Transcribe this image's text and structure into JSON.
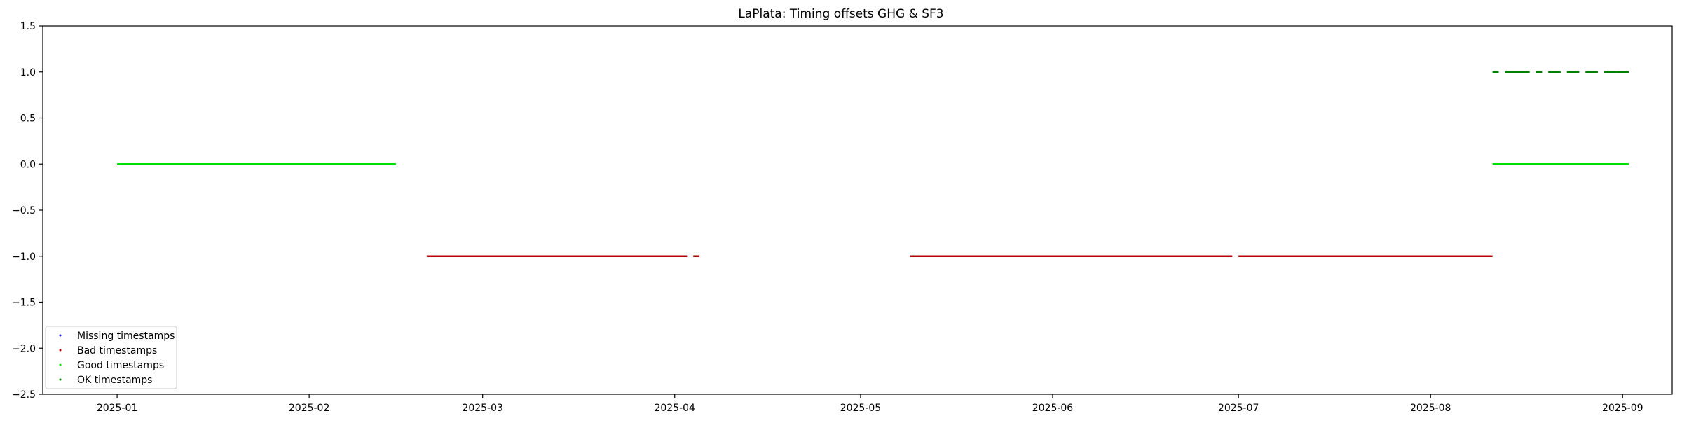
{
  "chart_data": {
    "type": "scatter",
    "title": "LaPlata: Timing offsets GHG & SF3",
    "xlabel": "",
    "ylabel": "",
    "xlim": [
      "2024-12-20",
      "2025-09-09"
    ],
    "ylim": [
      -2.5,
      1.5
    ],
    "x_ticks": [
      "2025-01",
      "2025-02",
      "2025-03",
      "2025-04",
      "2025-05",
      "2025-06",
      "2025-07",
      "2025-08",
      "2025-09"
    ],
    "y_ticks": [
      -2.5,
      -2.0,
      -1.5,
      -1.0,
      -0.5,
      0.0,
      0.5,
      1.0,
      1.5
    ],
    "legend_position": "lower-left",
    "grid": false,
    "series": [
      {
        "name": "Missing timestamps",
        "color": "#1a1aff",
        "segments": []
      },
      {
        "name": "Bad timestamps",
        "color": "#b30000",
        "y": -1.0,
        "segments": [
          [
            "2025-02-20",
            "2025-04-03"
          ],
          [
            "2025-04-04",
            "2025-04-05"
          ],
          [
            "2025-05-09",
            "2025-06-30"
          ],
          [
            "2025-07-01",
            "2025-08-11"
          ]
        ]
      },
      {
        "name": "Good timestamps",
        "color": "#00e000",
        "y": 0.0,
        "segments": [
          [
            "2025-01-01",
            "2025-02-15"
          ],
          [
            "2025-08-11",
            "2025-09-02"
          ]
        ]
      },
      {
        "name": "OK timestamps",
        "color": "#008000",
        "y": 1.0,
        "segments": [
          [
            "2025-08-11",
            "2025-08-12"
          ],
          [
            "2025-08-13",
            "2025-08-17"
          ],
          [
            "2025-08-18",
            "2025-08-19"
          ],
          [
            "2025-08-20",
            "2025-08-22"
          ],
          [
            "2025-08-23",
            "2025-08-25"
          ],
          [
            "2025-08-26",
            "2025-08-28"
          ],
          [
            "2025-08-29",
            "2025-08-31"
          ],
          [
            "2025-08-31",
            "2025-09-02"
          ]
        ]
      }
    ]
  }
}
